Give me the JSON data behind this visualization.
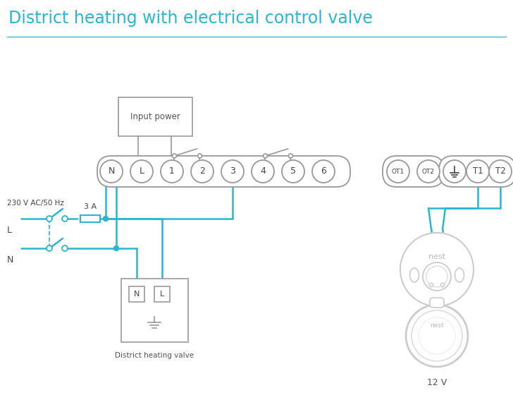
{
  "title": "District heating with electrical control valve",
  "title_color": "#29b6d2",
  "title_fontsize": 17,
  "bg_color": "#ffffff",
  "line_color": "#29b6d2",
  "input_power_text": "Input power",
  "label_230v": "230 V AC/50 Hz",
  "label_L": "L",
  "label_N": "N",
  "label_3A": "3 A",
  "label_district": "District heating valve",
  "label_12v": "12 V",
  "label_nest": "nest",
  "gray": "#999999",
  "lgray": "#cccccc",
  "dgray": "#666666"
}
